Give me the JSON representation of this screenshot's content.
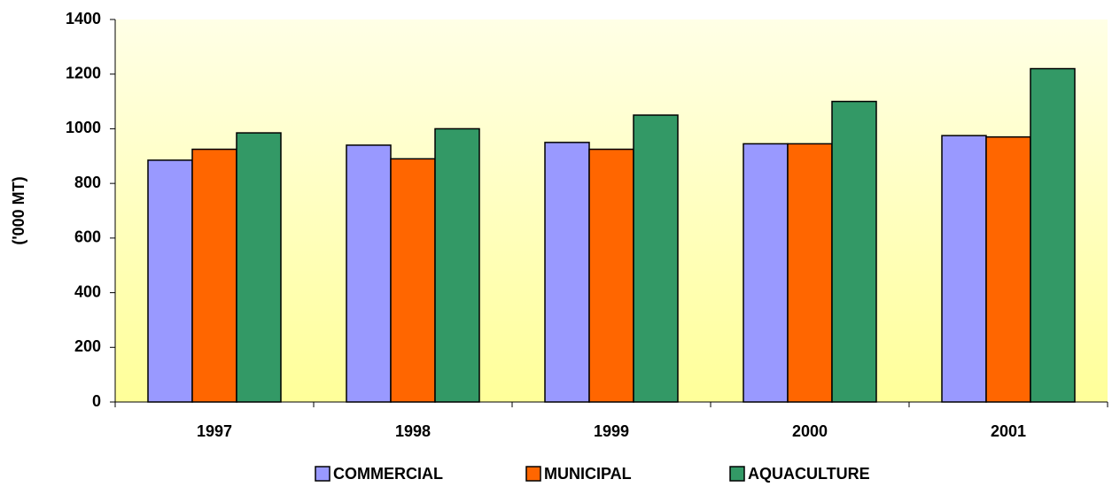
{
  "chart_data": {
    "type": "bar",
    "y_label": "('000  MT)",
    "categories": [
      "1997",
      "1998",
      "1999",
      "2000",
      "2001"
    ],
    "series": [
      {
        "name": "COMMERCIAL",
        "color": "#9999ff",
        "values": [
          885,
          940,
          950,
          945,
          975
        ]
      },
      {
        "name": "MUNICIPAL",
        "color": "#ff6600",
        "values": [
          925,
          890,
          925,
          945,
          970
        ]
      },
      {
        "name": "AQUACULTURE",
        "color": "#339966",
        "values": [
          985,
          1000,
          1050,
          1100,
          1220
        ]
      }
    ],
    "ylim": [
      0,
      1400
    ],
    "yticks": [
      0,
      200,
      400,
      600,
      800,
      1000,
      1200,
      1400
    ],
    "legend": "bottom"
  }
}
